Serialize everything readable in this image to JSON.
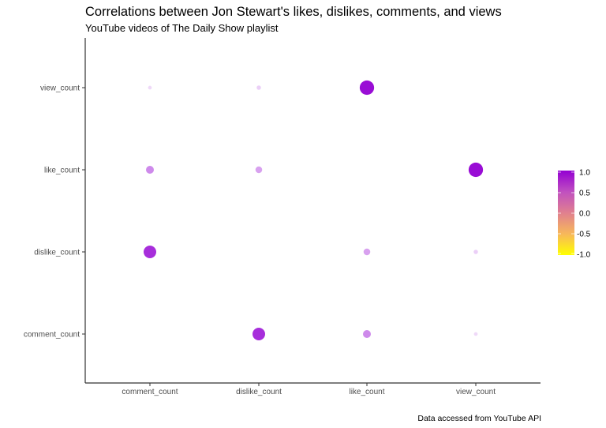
{
  "header": {
    "title": "Correlations between Jon Stewart's likes, dislikes, comments, and views",
    "subtitle": "YouTube videos of The Daily Show playlist"
  },
  "caption": "Data accessed from YouTube API",
  "chart_data": {
    "type": "scatter",
    "subtype": "correlation-bubble-matrix",
    "title": "Correlations between Jon Stewart's likes, dislikes, comments, and views",
    "subtitle": "YouTube videos of The Daily Show playlist",
    "caption": "Data accessed from YouTube API",
    "xlabel": "",
    "ylabel": "",
    "x_categories": [
      "comment_count",
      "dislike_count",
      "like_count",
      "view_count"
    ],
    "y_categories": [
      "comment_count",
      "dislike_count",
      "like_count",
      "view_count"
    ],
    "points": [
      {
        "x": "comment_count",
        "y": "view_count",
        "r": 0.05
      },
      {
        "x": "dislike_count",
        "y": "view_count",
        "r": 0.1
      },
      {
        "x": "like_count",
        "y": "view_count",
        "r": 0.95
      },
      {
        "x": "comment_count",
        "y": "like_count",
        "r": 0.4
      },
      {
        "x": "dislike_count",
        "y": "like_count",
        "r": 0.3
      },
      {
        "x": "view_count",
        "y": "like_count",
        "r": 0.95
      },
      {
        "x": "comment_count",
        "y": "dislike_count",
        "r": 0.8
      },
      {
        "x": "like_count",
        "y": "dislike_count",
        "r": 0.3
      },
      {
        "x": "view_count",
        "y": "dislike_count",
        "r": 0.1
      },
      {
        "x": "dislike_count",
        "y": "comment_count",
        "r": 0.8
      },
      {
        "x": "like_count",
        "y": "comment_count",
        "r": 0.4
      },
      {
        "x": "view_count",
        "y": "comment_count",
        "r": 0.05
      }
    ],
    "legend": {
      "position": "right",
      "type": "colorbar",
      "ticks": [
        "1.0",
        "0.5",
        "0.0",
        "-0.5",
        "-1.0"
      ],
      "range": [
        -1,
        1
      ],
      "colors": {
        "low": "#ffff00",
        "mid": "#e0808f",
        "high": "#9400d3"
      }
    },
    "grid": false
  }
}
